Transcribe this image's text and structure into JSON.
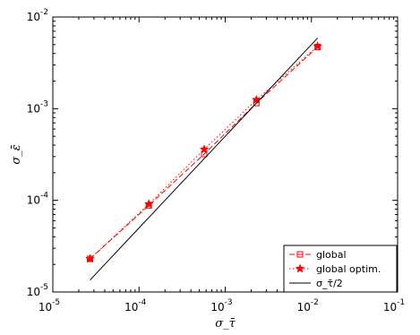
{
  "chart_data": {
    "type": "line",
    "xscale": "log",
    "yscale": "log",
    "xlim": [
      1e-05,
      0.1
    ],
    "ylim": [
      1e-05,
      0.01
    ],
    "xlabel": "σ_τ̄",
    "ylabel": "σ_ε̄",
    "x_ticks": [
      {
        "value": 1e-05,
        "base": "10",
        "exp": "-5"
      },
      {
        "value": 0.0001,
        "base": "10",
        "exp": "-4"
      },
      {
        "value": 0.001,
        "base": "10",
        "exp": "-3"
      },
      {
        "value": 0.01,
        "base": "10",
        "exp": "-2"
      },
      {
        "value": 0.1,
        "base": "10",
        "exp": "-1"
      }
    ],
    "y_ticks": [
      {
        "value": 1e-05,
        "base": "10",
        "exp": "-5"
      },
      {
        "value": 0.0001,
        "base": "10",
        "exp": "-4"
      },
      {
        "value": 0.001,
        "base": "10",
        "exp": "-3"
      },
      {
        "value": 0.01,
        "base": "10",
        "exp": "-2"
      }
    ],
    "legend_position": "bottom-right",
    "series": [
      {
        "name": "global",
        "color": "#ff0000",
        "line_style": "dashed",
        "marker": "square",
        "x": [
          2.7e-05,
          0.00013,
          0.00057,
          0.0023,
          0.0118
        ],
        "y": [
          2.3e-05,
          8.8e-05,
          0.00032,
          0.00115,
          0.0047
        ]
      },
      {
        "name": "global optim.",
        "color": "#ff0000",
        "line_style": "dotted",
        "marker": "star",
        "x": [
          2.7e-05,
          0.00013,
          0.00057,
          0.0023,
          0.0118
        ],
        "y": [
          2.3e-05,
          9.1e-05,
          0.00036,
          0.00125,
          0.0048
        ]
      },
      {
        "name": "σ_τ̄/2",
        "color": "#000000",
        "line_style": "solid",
        "marker": "none",
        "x": [
          2.7e-05,
          0.0118
        ],
        "y": [
          1.35e-05,
          0.0059
        ]
      }
    ]
  }
}
